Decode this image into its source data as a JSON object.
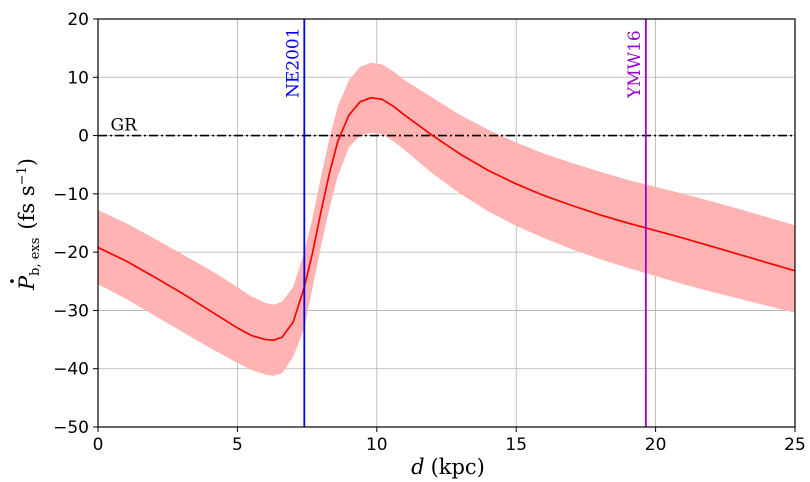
{
  "chart_data": {
    "type": "line",
    "xlabel_var": "d",
    "xlabel_unit": "(kpc)",
    "ylabel_var": "P",
    "ylabel_sub": "b, exs",
    "ylabel_unit_open": "(fs s",
    "ylabel_unit_exp": "−1",
    "ylabel_unit_close": ")",
    "xlim": [
      0,
      25
    ],
    "ylim": [
      -50,
      20
    ],
    "grid": true,
    "xticks": [
      0,
      5,
      10,
      15,
      20,
      25
    ],
    "xtick_labels": [
      "0",
      "5",
      "10",
      "15",
      "20",
      "25"
    ],
    "yticks": [
      -50,
      -40,
      -30,
      -20,
      -10,
      0,
      10,
      20
    ],
    "ytick_labels": [
      "−50",
      "−40",
      "−30",
      "−20",
      "−10",
      "0",
      "10",
      "20"
    ],
    "series": [
      {
        "kind": "line",
        "color": "#ff0000",
        "x": [
          0,
          1,
          2,
          3,
          4,
          5,
          5.5,
          6,
          6.3,
          6.6,
          7,
          7.4,
          7.7,
          8,
          8.3,
          8.6,
          9,
          9.4,
          9.8,
          10.2,
          10.6,
          11,
          12,
          13,
          14,
          15,
          16,
          17,
          18,
          19,
          20,
          21,
          22,
          23,
          24,
          25
        ],
        "y": [
          -19.2,
          -21.5,
          -24.2,
          -27.0,
          -30.0,
          -33.0,
          -34.3,
          -35.0,
          -35.1,
          -34.6,
          -32.0,
          -26.0,
          -20.0,
          -13.0,
          -6.5,
          -1.0,
          3.5,
          5.8,
          6.5,
          6.2,
          5.0,
          3.5,
          0.0,
          -3.2,
          -6.0,
          -8.3,
          -10.3,
          -12.0,
          -13.6,
          -15.0,
          -16.3,
          -17.6,
          -19.0,
          -20.4,
          -21.8,
          -23.2
        ]
      }
    ],
    "band": {
      "color": "#ffb3b3",
      "x": [
        0,
        1,
        2,
        3,
        4,
        5,
        5.5,
        6,
        6.3,
        6.6,
        7,
        7.4,
        7.7,
        8,
        8.3,
        8.6,
        9,
        9.4,
        9.8,
        10.2,
        10.6,
        11,
        12,
        13,
        14,
        15,
        16,
        17,
        18,
        19,
        20,
        21,
        22,
        23,
        24,
        25
      ],
      "lower": [
        -25.5,
        -28.0,
        -30.8,
        -33.6,
        -36.4,
        -39.0,
        -40.2,
        -41.0,
        -41.2,
        -40.8,
        -38.0,
        -33.0,
        -26.0,
        -19.0,
        -12.5,
        -7.0,
        -2.0,
        0.0,
        0.5,
        0.2,
        -1.0,
        -2.5,
        -6.5,
        -10.0,
        -13.0,
        -15.5,
        -17.6,
        -19.5,
        -21.2,
        -22.7,
        -24.1,
        -25.5,
        -26.8,
        -28.0,
        -29.2,
        -30.4
      ],
      "upper": [
        -12.8,
        -15.0,
        -17.6,
        -20.3,
        -23.0,
        -26.0,
        -27.6,
        -28.7,
        -29.0,
        -28.5,
        -26.0,
        -20.0,
        -14.0,
        -7.0,
        -0.5,
        5.0,
        9.5,
        11.8,
        12.5,
        12.2,
        11.0,
        9.5,
        6.5,
        3.5,
        1.0,
        -1.2,
        -3.1,
        -4.7,
        -6.2,
        -7.6,
        -8.8,
        -10.0,
        -11.3,
        -12.6,
        -14.0,
        -15.4
      ]
    },
    "reference_line": {
      "label": "GR",
      "y": 0,
      "style": "dash-dot",
      "color": "#000000"
    },
    "vertical_markers": [
      {
        "label": "NE2001",
        "x": 7.4,
        "color": "#0000ee"
      },
      {
        "label": "YMW16",
        "x": 19.65,
        "color": "#9900cc"
      }
    ]
  }
}
